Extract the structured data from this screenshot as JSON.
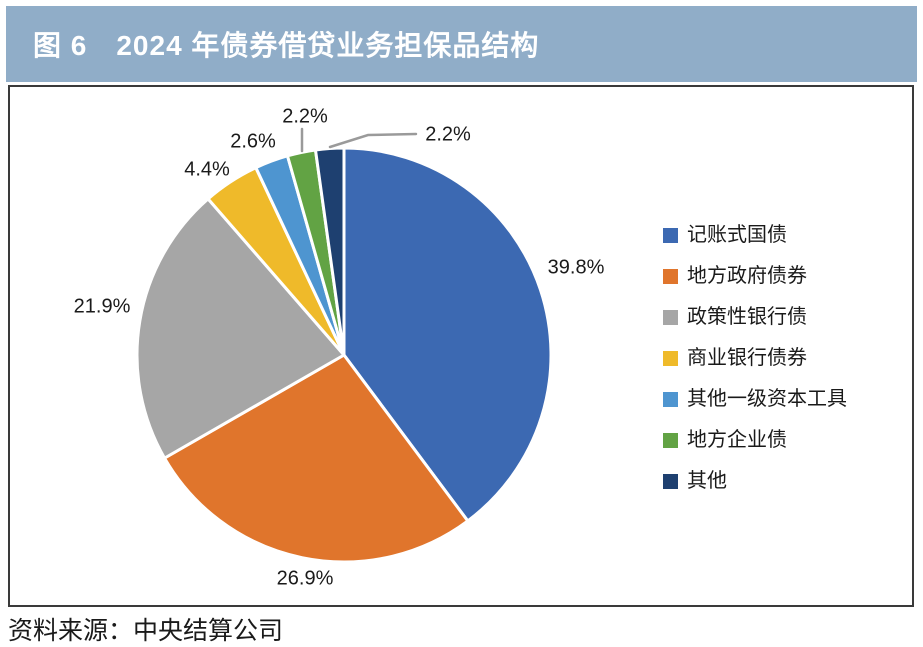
{
  "figure": {
    "title": "图 6　2024 年债券借贷业务担保品结构",
    "source": "资料来源：中央结算公司"
  },
  "chart_data": {
    "type": "pie",
    "title": "2024 年债券借贷业务担保品结构",
    "value_unit": "%",
    "direction": "clockwise",
    "start_angle": "12-oclock",
    "legend_position": "right",
    "slices": [
      {
        "label": "记账式国债",
        "value": 39.8,
        "color": "#3C69B2"
      },
      {
        "label": "地方政府债券",
        "value": 26.9,
        "color": "#E0752C"
      },
      {
        "label": "政策性银行债",
        "value": 21.9,
        "color": "#A6A6A6"
      },
      {
        "label": "商业银行债券",
        "value": 4.4,
        "color": "#EFBA2A"
      },
      {
        "label": "其他一级资本工具",
        "value": 2.6,
        "color": "#4E95D0"
      },
      {
        "label": "地方企业债",
        "value": 2.2,
        "color": "#62A344"
      },
      {
        "label": "其他",
        "value": 2.2,
        "color": "#1E4070"
      }
    ]
  },
  "colors": {
    "header_bg": "#90ADC8",
    "header_text": "#FFFFFF",
    "panel_border": "#3A3A3A",
    "leader_line": "#9A9A9A",
    "label_text": "#1A1A1A",
    "page_bg": "#FFFFFF"
  }
}
